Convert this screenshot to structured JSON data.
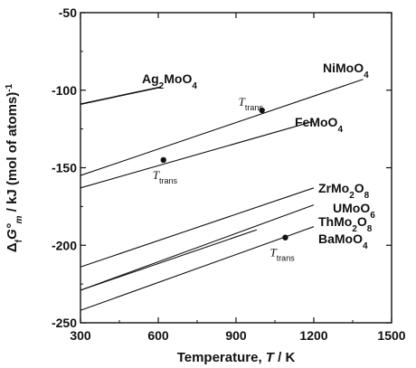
{
  "chart_data": {
    "type": "line",
    "title": "",
    "xlabel": {
      "text": "Temperature, ",
      "var": "T",
      "unit": " / K"
    },
    "ylabel": {
      "delta": "Δ",
      "delta_sub": "f",
      "g": "G°",
      "g_sub": "m",
      "rest": " / kJ (mol of atoms)",
      "sup": "-1"
    },
    "xlim": [
      300,
      1500
    ],
    "ylim": [
      -250,
      -50
    ],
    "xticks": [
      300,
      600,
      900,
      1200,
      1500
    ],
    "yticks": [
      -250,
      -200,
      -150,
      -100,
      -50
    ],
    "grid": false,
    "series": [
      {
        "name": "Ag2MoO4",
        "label_parts": [
          [
            "Ag",
            ""
          ],
          [
            "2",
            "sub"
          ],
          [
            "MoO",
            ""
          ],
          [
            "4",
            "sub"
          ]
        ],
        "x": [
          300,
          610
        ],
        "y": [
          -109,
          -98
        ]
      },
      {
        "name": "NiMoO4",
        "label_parts": [
          [
            "NiMoO",
            ""
          ],
          [
            "4",
            "sub"
          ]
        ],
        "x": [
          300,
          1390
        ],
        "y": [
          -155,
          -93
        ]
      },
      {
        "name": "FeMoO4",
        "label_parts": [
          [
            "FeMoO",
            ""
          ],
          [
            "4",
            "sub"
          ]
        ],
        "x": [
          300,
          1200
        ],
        "y": [
          -163,
          -120
        ]
      },
      {
        "name": "ZrMo2O8",
        "label_parts": [
          [
            "ZrMo",
            ""
          ],
          [
            "2",
            "sub"
          ],
          [
            "O",
            ""
          ],
          [
            "8",
            "sub"
          ]
        ],
        "x": [
          300,
          1200
        ],
        "y": [
          -214,
          -163
        ]
      },
      {
        "name": "UMoO6",
        "label_parts": [
          [
            "UMoO",
            ""
          ],
          [
            "6",
            "sub"
          ]
        ],
        "x": [
          300,
          1200
        ],
        "y": [
          -229,
          -174
        ]
      },
      {
        "name": "ThMo2O8",
        "label_parts": [
          [
            "ThMo",
            ""
          ],
          [
            "2",
            "sub"
          ],
          [
            "O",
            ""
          ],
          [
            "8",
            "sub"
          ]
        ],
        "x": [
          300,
          980
        ],
        "y": [
          -229,
          -190
        ]
      },
      {
        "name": "BaMoO4",
        "label_parts": [
          [
            "BaMoO",
            ""
          ],
          [
            "4",
            "sub"
          ]
        ],
        "x": [
          300,
          1200
        ],
        "y": [
          -242,
          -188
        ]
      }
    ],
    "transition_points": [
      {
        "series": "NiMoO4",
        "x": 1000,
        "y": -113
      },
      {
        "series": "FeMoO4",
        "x": 620,
        "y": -145
      },
      {
        "series": "BaMoO4",
        "x": 1090,
        "y": -195
      }
    ],
    "annotations": {
      "var": "T",
      "sub": "trans"
    }
  }
}
